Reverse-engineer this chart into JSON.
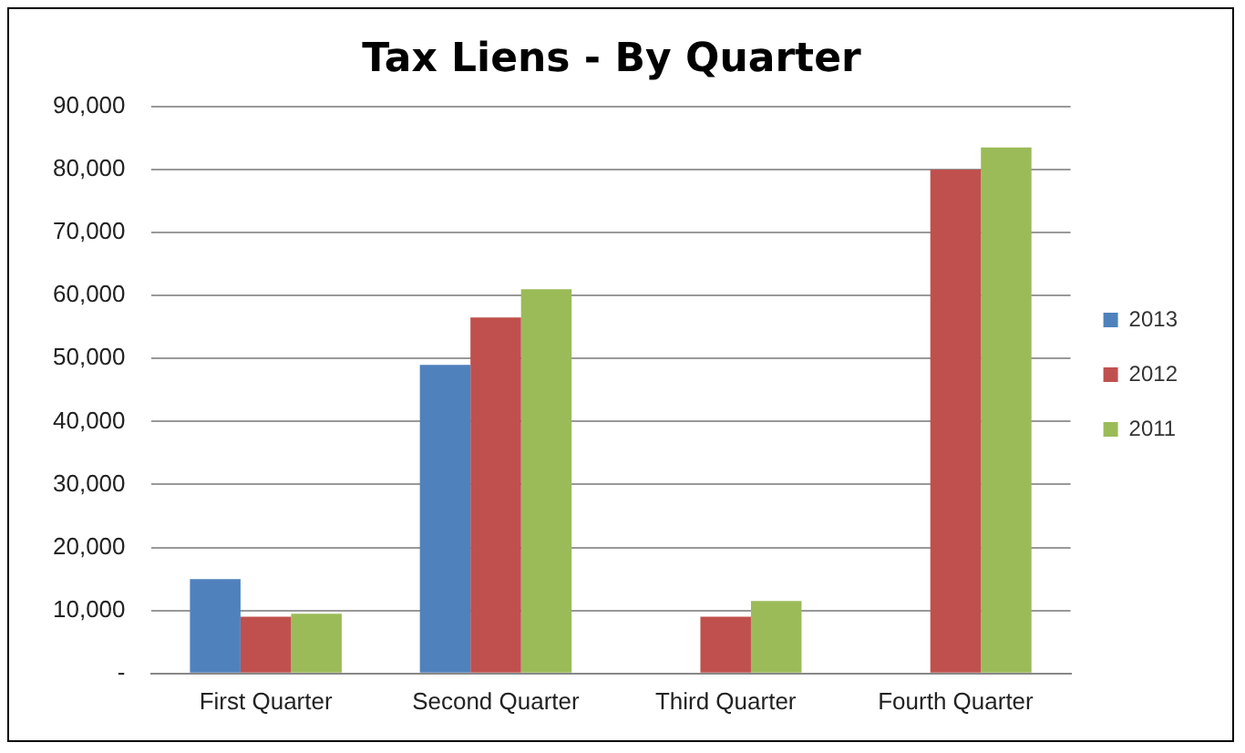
{
  "chart_data": {
    "type": "bar",
    "title": "Tax Liens - By Quarter",
    "categories": [
      "First Quarter",
      "Second Quarter",
      "Third Quarter",
      "Fourth Quarter"
    ],
    "series": [
      {
        "name": "2013",
        "color": "#4f81bd",
        "values": [
          15000,
          49000,
          null,
          null
        ]
      },
      {
        "name": "2012",
        "color": "#c0504d",
        "values": [
          9000,
          56500,
          9000,
          80000
        ]
      },
      {
        "name": "2011",
        "color": "#9bbb59",
        "values": [
          9500,
          61000,
          11500,
          83500
        ]
      }
    ],
    "ylim": [
      0,
      90000
    ],
    "yticks": [
      {
        "value": 0,
        "label": "-"
      },
      {
        "value": 10000,
        "label": "10,000"
      },
      {
        "value": 20000,
        "label": "20,000"
      },
      {
        "value": 30000,
        "label": "30,000"
      },
      {
        "value": 40000,
        "label": "40,000"
      },
      {
        "value": 50000,
        "label": "50,000"
      },
      {
        "value": 60000,
        "label": "60,000"
      },
      {
        "value": 70000,
        "label": "70,000"
      },
      {
        "value": 80000,
        "label": "80,000"
      },
      {
        "value": 90000,
        "label": "90,000"
      }
    ],
    "grid": "y",
    "legend": "right"
  }
}
